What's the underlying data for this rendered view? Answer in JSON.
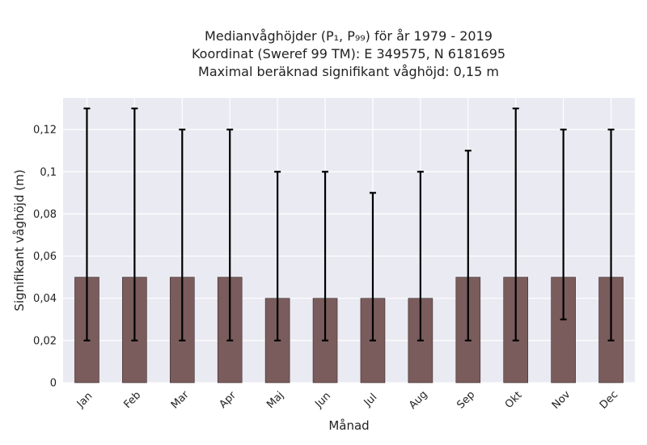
{
  "title_lines": [
    "Medianvåghöjder (P₁, P₉₉) för år 1979 - 2019",
    "Koordinat (Sweref 99 TM): E 349575, N 6181695",
    "Maximal beräknad signifikant våghöjd: 0,15 m"
  ],
  "chart_data": {
    "type": "bar",
    "categories": [
      "Jan",
      "Feb",
      "Mar",
      "Apr",
      "Maj",
      "Jun",
      "Jul",
      "Aug",
      "Sep",
      "Okt",
      "Nov",
      "Dec"
    ],
    "series": [
      {
        "values": [
          0.05,
          0.05,
          0.05,
          0.05,
          0.04,
          0.04,
          0.04,
          0.04,
          0.05,
          0.05,
          0.05,
          0.05
        ],
        "error_low": [
          0.02,
          0.02,
          0.02,
          0.02,
          0.02,
          0.02,
          0.02,
          0.02,
          0.02,
          0.02,
          0.03,
          0.02
        ],
        "error_high": [
          0.13,
          0.13,
          0.12,
          0.12,
          0.1,
          0.1,
          0.09,
          0.1,
          0.11,
          0.13,
          0.12,
          0.12
        ]
      }
    ],
    "xlabel": "Månad",
    "ylabel": "Signifikant våghöjd (m)",
    "ylim": [
      0,
      0.135
    ],
    "yticks": [
      0,
      0.02,
      0.04,
      0.06,
      0.08,
      0.1,
      0.12
    ],
    "ytick_labels": [
      "0",
      "0,02",
      "0,04",
      "0,06",
      "0,08",
      "0,1",
      "0,12"
    ],
    "grid": true,
    "colors": {
      "bar": "#7a5c5c",
      "error": "#000000",
      "plot_bg": "#eaeaf2",
      "grid": "#ffffff"
    }
  }
}
